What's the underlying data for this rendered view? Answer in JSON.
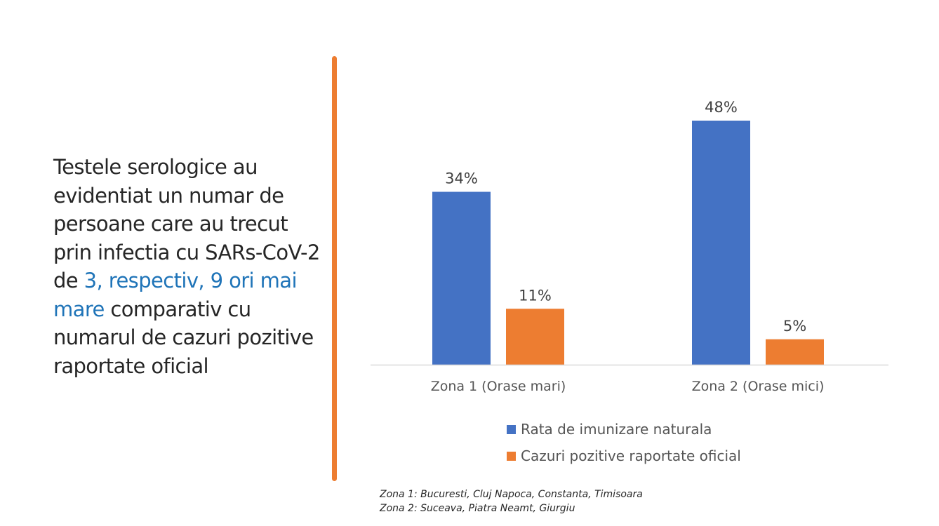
{
  "text_block": {
    "before": "Testele serologice au evidentiat un numar de persoane care au trecut prin infectia cu SARs-CoV-2 de ",
    "highlight": "3, respectiv, 9 ori mai mare",
    "after": " comparativ cu numarul de cazuri pozitive raportate oficial"
  },
  "colors": {
    "accent_divider": "#ed7d31",
    "highlight_text": "#1f74b8",
    "series_blue": "#4472c4",
    "series_orange": "#ed7d31"
  },
  "chart_data": {
    "type": "bar",
    "title": "",
    "xlabel": "",
    "ylabel": "",
    "ylim": [
      0,
      50
    ],
    "grid": false,
    "legend_position": "bottom",
    "categories": [
      "Zona 1 (Orase mari)",
      "Zona 2 (Orase mici)"
    ],
    "series": [
      {
        "name": "Rata de imunizare naturala",
        "color": "#4472c4",
        "values": [
          34,
          48
        ],
        "labels": [
          "34%",
          "48%"
        ]
      },
      {
        "name": "Cazuri pozitive raportate oficial",
        "color": "#ed7d31",
        "values": [
          11,
          5
        ],
        "labels": [
          "11%",
          "5%"
        ]
      }
    ]
  },
  "footnotes": [
    "Zona 1: Bucuresti, Cluj Napoca, Constanta, Timisoara",
    "Zona 2: Suceava, Piatra Neamt, Giurgiu"
  ]
}
